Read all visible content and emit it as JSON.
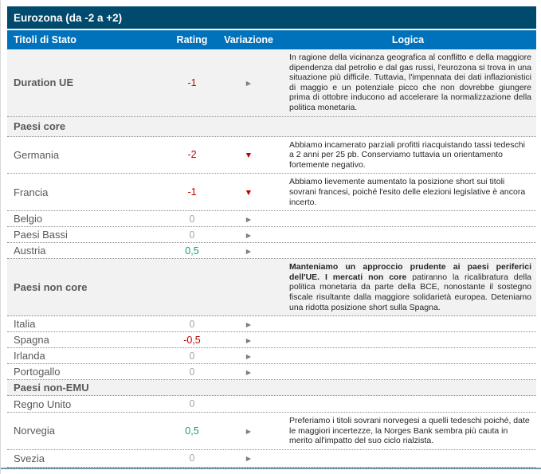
{
  "title": "Eurozona (da -2 a +2)",
  "columns": {
    "name": "Titoli di Stato",
    "rating": "Rating",
    "variation": "Variazione",
    "logic": "Logica"
  },
  "colors": {
    "navy": "#004A6E",
    "blue": "#0072BC",
    "orange": "#E8621C",
    "red": "#C00000",
    "green": "#169C72",
    "zero_gray": "#A6A6A6",
    "arrow_gray": "#7F7F7F",
    "shaded_row": "#F2F2F2",
    "bottom_line": "#6D96AB"
  },
  "rows": [
    {
      "type": "item",
      "name": "Duration UE",
      "rating": "-1",
      "arrow": "right",
      "arrow_glyph": "►",
      "logic": "In ragione della vicinanza geografica al conflitto e della maggiore dipendenza dal petrolio e dal gas russi, l'eurozona si trova in una situazione più difficile. Tuttavia, l'impennata dei dati inflazionistici di maggio e un potenziale picco che non dovrebbe giungere prima di ottobre inducono ad accelerare la normalizzazione della politica monetaria."
    },
    {
      "type": "section",
      "name": "Paesi core"
    },
    {
      "type": "item",
      "name": "Germania",
      "rating": "-2",
      "arrow": "down",
      "arrow_glyph": "▼",
      "logic": "Abbiamo incamerato parziali profitti riacquistando tassi tedeschi a 2 anni per 25 pb. Conserviamo tuttavia un orientamento fortemente negativo."
    },
    {
      "type": "item",
      "name": "Francia",
      "rating": "-1",
      "arrow": "down",
      "arrow_glyph": "▼",
      "logic": "Abbiamo lievemente aumentato la posizione short sui titoli sovrani francesi, poiché l'esito delle elezioni legislative è ancora incerto."
    },
    {
      "type": "item",
      "name": "Belgio",
      "rating": "0",
      "arrow": "right",
      "arrow_glyph": "►",
      "logic": ""
    },
    {
      "type": "item",
      "name": "Paesi Bassi",
      "rating": "0",
      "arrow": "right",
      "arrow_glyph": "►",
      "logic": ""
    },
    {
      "type": "item",
      "name": "Austria",
      "rating": "0,5",
      "arrow": "right",
      "arrow_glyph": "►",
      "logic": ""
    },
    {
      "type": "section",
      "name": "Paesi non core",
      "logic_bold": "Manteniamo un approccio prudente ai paesi periferici dell'UE. I mercati non core",
      "logic_rest": " patiranno la ricalibratura della politica monetaria da parte della BCE, nonostante il sostegno fiscale risultante dalla maggiore solidarietà europea. Deteniamo una ridotta posizione short sulla Spagna."
    },
    {
      "type": "item",
      "name": "Italia",
      "rating": "0",
      "arrow": "right",
      "arrow_glyph": "►",
      "logic": ""
    },
    {
      "type": "item",
      "name": "Spagna",
      "rating": "-0,5",
      "arrow": "right",
      "arrow_glyph": "►",
      "logic": ""
    },
    {
      "type": "item",
      "name": "Irlanda",
      "rating": "0",
      "arrow": "right",
      "arrow_glyph": "►",
      "logic": ""
    },
    {
      "type": "item",
      "name": "Portogallo",
      "rating": "0",
      "arrow": "right",
      "arrow_glyph": "►",
      "logic": ""
    },
    {
      "type": "section",
      "name": "Paesi non-EMU"
    },
    {
      "type": "item",
      "name": "Regno Unito",
      "rating": "0",
      "arrow": "none",
      "arrow_glyph": "",
      "logic": ""
    },
    {
      "type": "item",
      "name": "Norvegia",
      "rating": "0,5",
      "arrow": "right",
      "arrow_glyph": "►",
      "logic": "Preferiamo i titoli sovrani norvegesi a quelli tedeschi poiché, date le maggiori incertezze, la Norges Bank sembra più cauta in merito all'impatto del suo ciclo rialzista."
    },
    {
      "type": "item",
      "name": "Svezia",
      "rating": "0",
      "arrow": "right",
      "arrow_glyph": "►",
      "logic": ""
    }
  ]
}
